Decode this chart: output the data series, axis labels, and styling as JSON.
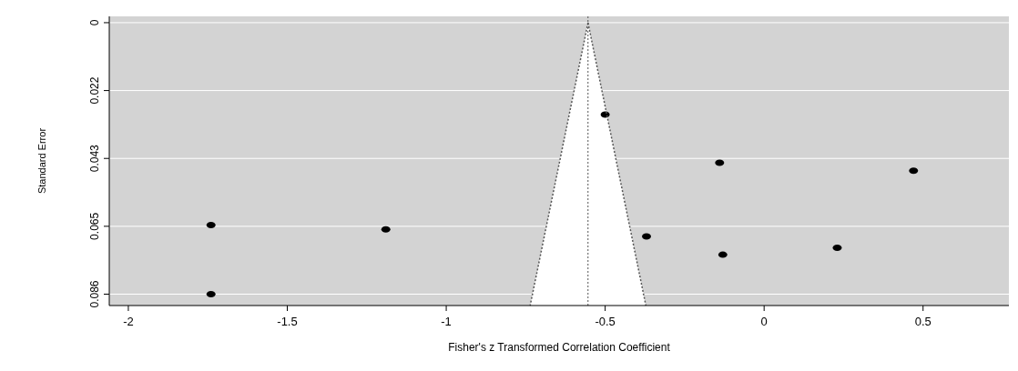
{
  "chart_data": {
    "type": "scatter",
    "xlabel": "Fisher's z Transformed Correlation Coefficient",
    "ylabel": "Standard Error",
    "xlim": [
      -2.06,
      0.77
    ],
    "xticks": [
      -2,
      -1.5,
      -1,
      -0.5,
      0,
      0.5
    ],
    "ylim": [
      0.0896,
      -0.002
    ],
    "yticks": [
      0,
      {
        "value": 0.0215,
        "label": "0.022"
      },
      0.043,
      {
        "value": 0.0645,
        "label": "0.065"
      },
      0.086
    ],
    "grid": "y",
    "series": [
      {
        "marker": "circle",
        "color": "#000000",
        "x": [
          -1.74,
          -1.74,
          -1.19,
          -0.5,
          -0.14,
          0.47,
          -0.37,
          -0.13,
          0.23
        ],
        "values": [
          0.0641,
          0.086,
          0.0655,
          0.0291,
          0.0444,
          0.0469,
          0.0677,
          0.0735,
          0.0713
        ]
      },
      {
        "type": "line",
        "color": "#555555",
        "line_style": "dotted",
        "x": [
          -0.554,
          -0.736
        ],
        "values": [
          0,
          0.0896
        ]
      },
      {
        "type": "line",
        "color": "#555555",
        "line_style": "dotted",
        "x": [
          -0.554,
          -0.372
        ],
        "values": [
          0,
          0.0896
        ]
      }
    ],
    "ref_lines": [
      {
        "axis": "x",
        "value": -0.554,
        "color": "#555555",
        "line_style": "dotted"
      }
    ]
  }
}
